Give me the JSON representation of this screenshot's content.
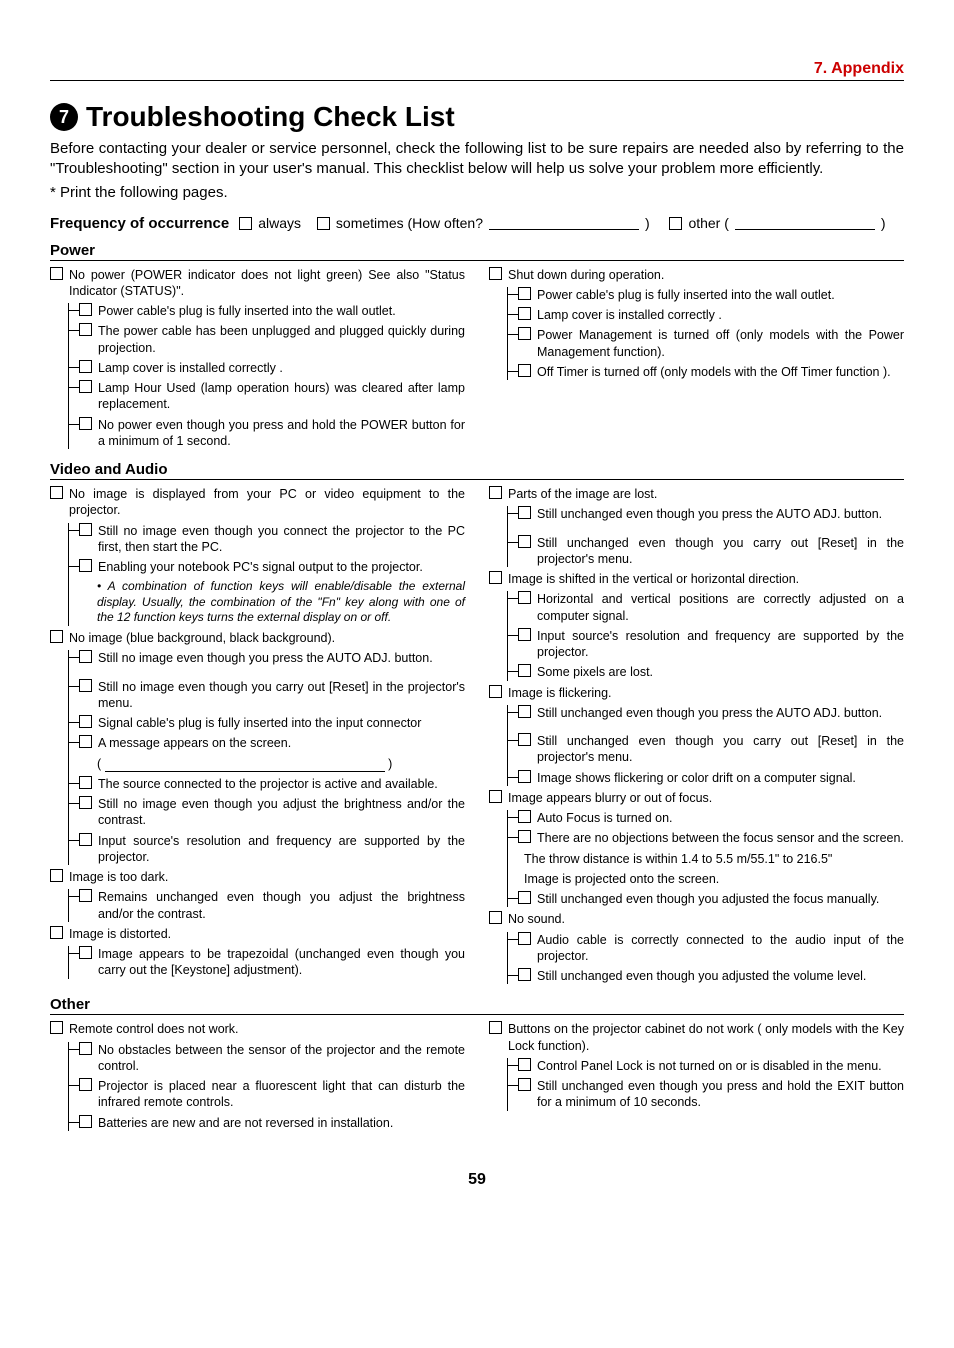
{
  "header": {
    "appendix": "7. Appendix"
  },
  "title": {
    "number": "7",
    "text": "Troubleshooting Check List"
  },
  "intro": "Before contacting your dealer or service personnel, check the following list to be sure repairs are needed also by referring to the \"Troubleshooting\" section in your user's manual. This checklist below will help us solve your problem more efficiently.",
  "printNote": "* Print the following pages.",
  "freq": {
    "label": "Frequency of occurrence",
    "always": "always",
    "sometimes": "sometimes (How often?",
    "other": "other ("
  },
  "sections": {
    "power": {
      "title": "Power",
      "left": [
        {
          "text": "No power (POWER indicator does not light green)  See also \"Status Indicator (STATUS)\".",
          "subs": [
            "Power cable's plug is fully inserted into the wall outlet.",
            "The power cable has been unplugged and plugged quickly during projection.",
            "Lamp cover is installed correctly .",
            "Lamp Hour Used (lamp operation hours) was cleared after lamp replacement.",
            "No power even though you press and hold the POWER button for a minimum of 1 second."
          ]
        }
      ],
      "right": [
        {
          "text": "Shut down during operation.",
          "subs": [
            "Power cable's plug is fully inserted into the wall outlet.",
            "Lamp cover is installed correctly .",
            "Power Management is turned off (only models with the Power Management function).",
            "Off Timer is turned off (only models with the Off Timer function )."
          ]
        }
      ]
    },
    "video": {
      "title": "Video and Audio",
      "left": [
        {
          "text": "No image is displayed from your PC or video equipment to the projector.",
          "subs": [
            "Still no image even though you connect the projector to the PC first, then start the PC.",
            "Enabling your notebook PC's signal output to the projector."
          ],
          "bullet": "• A combination of function keys will enable/disable the external display. Usually, the combination of the \"Fn\" key along with one of the 12 function keys turns the external display on or off."
        },
        {
          "text": "No image (blue background, black background).",
          "subs": [
            "Still no image even though you press the AUTO ADJ. button.",
            "",
            "Still no image even though you carry out [Reset] in the projector's menu.",
            "Signal cable's plug is fully inserted into the input connector",
            "A message appears on the screen."
          ],
          "msgBlank": true,
          "subs2": [
            "The source connected to the projector is active and available.",
            "Still no image even though you adjust the brightness and/or the contrast.",
            "Input source's resolution and frequency are supported by the projector."
          ]
        },
        {
          "text": "Image is too dark.",
          "subs": [
            "Remains unchanged even though you adjust the brightness and/or the contrast."
          ]
        },
        {
          "text": "Image is distorted.",
          "subs": [
            "Image appears to be trapezoidal (unchanged even though you carry out the [Keystone] adjustment)."
          ]
        }
      ],
      "right": [
        {
          "text": "Parts of the image are lost.",
          "subs": [
            "Still unchanged even though you press the AUTO ADJ. button.",
            "",
            "Still unchanged even though you carry out [Reset] in the projector's menu."
          ]
        },
        {
          "text": "Image is shifted in the vertical or horizontal direction.",
          "subs": [
            "Horizontal and vertical positions are correctly adjusted on a computer signal.",
            "Input source's resolution and frequency are supported by the projector.",
            "Some pixels are lost."
          ]
        },
        {
          "text": "Image is flickering.",
          "subs": [
            "Still unchanged even though you press the AUTO ADJ. button.",
            "",
            "Still unchanged even though you carry out [Reset] in the projector's menu.",
            "Image shows flickering or color drift on a computer signal."
          ]
        },
        {
          "text": "Image appears blurry or out of focus.",
          "subs": [
            "Auto Focus is turned on.",
            "There are no objections between the focus sensor and the screen."
          ],
          "extra": [
            "The throw distance is within 1.4 to 5.5 m/55.1\" to 216.5\"",
            "Image is projected onto the screen."
          ],
          "subs2": [
            "Still unchanged even though you adjusted the focus manually."
          ]
        },
        {
          "text": "No sound.",
          "subs": [
            "Audio cable is correctly connected to the audio input of the projector.",
            "Still unchanged even though you adjusted the volume level."
          ]
        }
      ]
    },
    "other": {
      "title": "Other",
      "left": [
        {
          "text": "Remote control does not work.",
          "subs": [
            "No obstacles between the sensor of the projector and the remote control.",
            "Projector is placed near a fluorescent light that can disturb the infrared remote controls.",
            "Batteries are new and are not reversed in installation."
          ]
        }
      ],
      "right": [
        {
          "text": "Buttons on the projector cabinet do not work ( only models with the Key Lock function).",
          "subs": [
            "Control Panel Lock is not turned on or is disabled in the menu.",
            "Still unchanged even though you press and hold the EXIT button for a minimum of 10 seconds."
          ]
        }
      ]
    }
  },
  "pageNumber": "59"
}
